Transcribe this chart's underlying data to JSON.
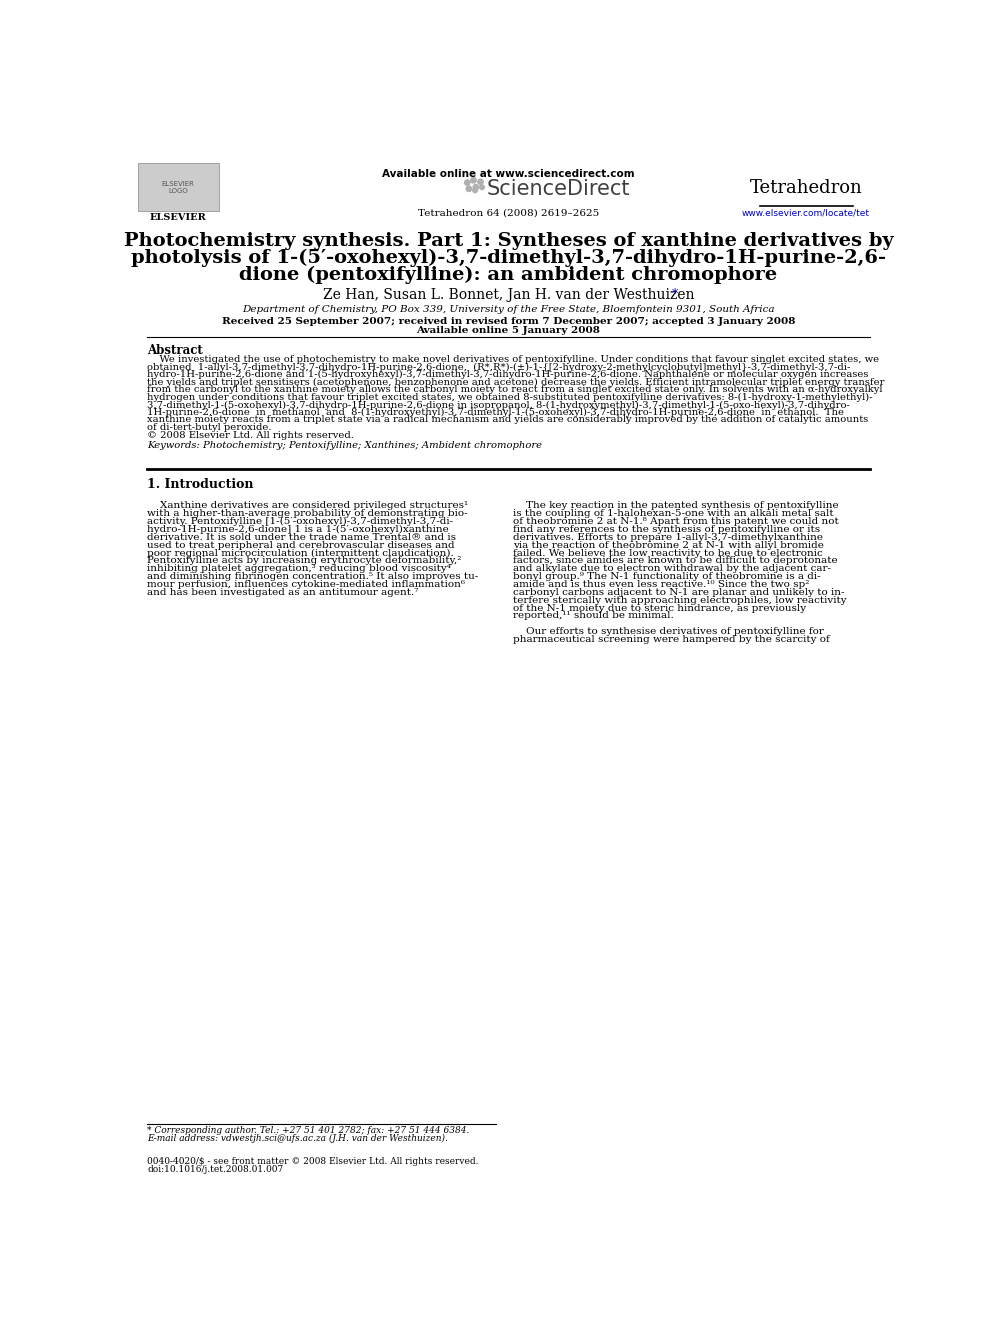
{
  "bg_color": "#ffffff",
  "header_available": "Available online at www.sciencedirect.com",
  "header_sciencedirect": "ScienceDirect",
  "header_journal": "Tetrahedron",
  "header_journal_info": "Tetrahedron 64 (2008) 2619–2625",
  "header_url": "www.elsevier.com/locate/tet",
  "header_elsevier": "ELSEVIER",
  "title_lines": [
    "Photochemistry synthesis. Part 1: Syntheses of xanthine derivatives by",
    "photolysis of 1-(5′-oxohexyl)-3,7-dimethyl-3,7-dihydro-1H-purine-2,6-",
    "dione (pentoxifylline): an ambident chromophore"
  ],
  "authors_main": "Ze Han, Susan L. Bonnet, Jan H. van der Westhuizen",
  "authors_star": "*",
  "affiliation": "Department of Chemistry, PO Box 339, University of the Free State, Bloemfontein 9301, South Africa",
  "dates_line": "Received 25 September 2007; received in revised form 7 December 2007; accepted 3 January 2008",
  "available_line": "Available online 5 January 2008",
  "abstract_heading": "Abstract",
  "abstract_lines": [
    "    We investigated the use of photochemistry to make novel derivatives of pentoxifylline. Under conditions that favour singlet excited states, we",
    "obtained  1-allyl-3,7-dimethyl-3,7-dihydro-1H-purine-2,6-dione,  (R*,R*)-(±)-1-{[2-hydroxy-2-methylcyclobutyl]methyl}-3,7-dimethyl-3,7-di-",
    "hydro-1H-purine-2,6-dione and 1-(5-hydroxyhexyl)-3,7-dimethyl-3,7-dihydro-1H-purine-2,6-dione. Naphthalene or molecular oxygen increases",
    "the yields and triplet sensitisers (acetophenone, benzophenone and acetone) decrease the yields. Efficient intramolecular triplet energy transfer",
    "from the carbonyl to the xanthine moiety allows the carbonyl moiety to react from a singlet excited state only. In solvents with an α-hydroxyalkyl",
    "hydrogen under conditions that favour triplet excited states, we obtained 8-substituted pentoxifylline derivatives: 8-(1-hydroxy-1-methylethyl)-",
    "3,7-dimethyl-1-(5-oxohexyl)-3,7-dihydro-1H-purine-2,6-dione in isopropanol, 8-(1-hydroxymethyl)-3,7-dimethyl-1-(5-oxo-hexyl)-3,7-dihydro-",
    "1H-purine-2,6-dione  in  methanol  and  8-(1-hydroxyethyl)-3,7-dimethyl-1-(5-oxohexyl)-3,7-dihydro-1H-purine-2,6-dione  in  ethanol.  The",
    "xanthine moiety reacts from a triplet state via a radical mechanism and yields are considerably improved by the addition of catalytic amounts",
    "of di-tert-butyl peroxide.",
    "© 2008 Elsevier Ltd. All rights reserved."
  ],
  "keywords_line": "Keywords: Photochemistry; Pentoxifylline; Xanthines; Ambident chromophore",
  "intro_heading": "1. Introduction",
  "intro_left_lines": [
    "    Xanthine derivatives are considered privileged structures¹",
    "with a higher-than-average probability of demonstrating bio-",
    "activity. Pentoxifylline [1-(5′-oxohexyl)-3,7-dimethyl-3,7-di-",
    "hydro-1H-purine-2,6-dione] 1 is a 1-(5′-oxohexyl)xanthine",
    "derivative. It is sold under the trade name Trental® and is",
    "used to treat peripheral and cerebrovascular diseases and",
    "poor regional microcirculation (intermittent claudication).",
    "Pentoxifylline acts by increasing erythrocyte deformability,²",
    "inhibiting platelet aggregation,³ reducing blood viscosity⁴",
    "and diminishing fibrinogen concentration.⁵ It also improves tu-",
    "mour perfusion, influences cytokine-mediated inflammation⁶",
    "and has been investigated as an antitumour agent.⁷"
  ],
  "intro_right_lines": [
    "    The key reaction in the patented synthesis of pentoxifylline",
    "is the coupling of 1-halohexan-5-one with an alkali metal salt",
    "of theobromine 2 at N-1.⁸ Apart from this patent we could not",
    "find any references to the synthesis of pentoxifylline or its",
    "derivatives. Efforts to prepare 1-allyl-3,7-dimethylxanthine",
    "via the reaction of theobromine 2 at N-1 with allyl bromide",
    "failed. We believe the low reactivity to be due to electronic",
    "factors, since amides are known to be difficult to deprotonate",
    "and alkylate due to electron withdrawal by the adjacent car-",
    "bonyl group.⁹ The N-1 functionality of theobromine is a di-",
    "amide and is thus even less reactive.¹⁰ Since the two sp²",
    "carbonyl carbons adjacent to N-1 are planar and unlikely to in-",
    "terfere sterically with approaching electrophiles, low reactivity",
    "of the N-1 moiety due to steric hindrance, as previously",
    "reported,¹¹ should be minimal.",
    "",
    "    Our efforts to synthesise derivatives of pentoxifylline for",
    "pharmaceutical screening were hampered by the scarcity of"
  ],
  "footnote1": "* Corresponding author. Tel.: +27 51 401 2782; fax: +27 51 444 6384.",
  "footnote2": "E-mail address: vdwestjh.sci@ufs.ac.za (J.H. van der Westhuizen).",
  "bottom1": "0040-4020/$ - see front matter © 2008 Elsevier Ltd. All rights reserved.",
  "bottom2": "doi:10.1016/j.tet.2008.01.007",
  "sciencedirect_dots": [
    [
      443,
      1292,
      3.5
    ],
    [
      451,
      1295,
      3.5
    ],
    [
      460,
      1293,
      3.5
    ],
    [
      454,
      1286,
      3.5
    ],
    [
      445,
      1284,
      3.5
    ],
    [
      453,
      1282,
      3.0
    ],
    [
      462,
      1286,
      3.0
    ]
  ],
  "color_blue": "#0000cc",
  "color_gray_dot": "#b0b0b0",
  "color_dark": "#404040",
  "color_black": "#000000",
  "color_logo_bg": "#cccccc",
  "color_logo_edge": "#888888"
}
